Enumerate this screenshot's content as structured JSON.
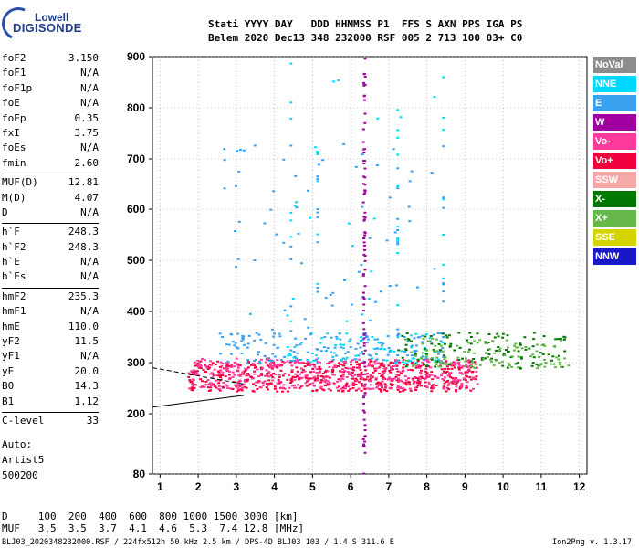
{
  "logo": {
    "top": "Lowell",
    "main": "DIGISONDE"
  },
  "header": {
    "line1": "Stati YYYY DAY   DDD HHMMSS P1  FFS S AXN PPS IGA PS",
    "line2": "Belem 2020 Dec13 348 232000 RSF 005 2 713 100 03+ C0"
  },
  "params": [
    {
      "label": "foF2",
      "value": "3.150"
    },
    {
      "label": "foF1",
      "value": "N/A"
    },
    {
      "label": "foF1p",
      "value": "N/A"
    },
    {
      "label": "foE",
      "value": "N/A"
    },
    {
      "label": "foEp",
      "value": "0.35"
    },
    {
      "label": "fxI",
      "value": "3.75"
    },
    {
      "label": "foEs",
      "value": "N/A"
    },
    {
      "label": "fmin",
      "value": "2.60"
    },
    {
      "label": "MUF(D)",
      "value": "12.81"
    },
    {
      "label": "M(D)",
      "value": "4.07"
    },
    {
      "label": "D",
      "value": "N/A"
    },
    {
      "label": "h`F",
      "value": "248.3"
    },
    {
      "label": "h`F2",
      "value": "248.3"
    },
    {
      "label": "h`E",
      "value": "N/A"
    },
    {
      "label": "h`Es",
      "value": "N/A"
    },
    {
      "label": "hmF2",
      "value": "235.3"
    },
    {
      "label": "hmF1",
      "value": "N/A"
    },
    {
      "label": "hmE",
      "value": "110.0"
    },
    {
      "label": "yF2",
      "value": "11.5"
    },
    {
      "label": "yF1",
      "value": "N/A"
    },
    {
      "label": "yE",
      "value": "20.0"
    },
    {
      "label": "B0",
      "value": "14.3"
    },
    {
      "label": "B1",
      "value": "1.12"
    },
    {
      "label": "C-level",
      "value": "33"
    }
  ],
  "auto": {
    "line1": "Auto:",
    "line2": "Artist5",
    "line3": "500200"
  },
  "muf_table": {
    "d_line": "D     100  200  400  600  800 1000 1500 3000 [km]",
    "muf_line": "MUF   3.5  3.5  3.7  4.1  4.6  5.3  7.4 12.8 [MHz]"
  },
  "footer": {
    "left": "BLJ03_2020348232000.RSF / 224fx512h 50 kHz 2.5 km / DPS-4D BLJ03 103 / 1.4 S 311.6 E",
    "right": "Ion2Png v. 1.3.17"
  },
  "legend": [
    {
      "label": "NoVal",
      "color": "#8c8c8c"
    },
    {
      "label": "NNE",
      "color": "#00d8ff"
    },
    {
      "label": "E",
      "color": "#3aa0f0"
    },
    {
      "label": "W",
      "color": "#a000a0"
    },
    {
      "label": "Vo-",
      "color": "#ff3c9c"
    },
    {
      "label": "Vo+",
      "color": "#f0003c"
    },
    {
      "label": "SSW",
      "color": "#f4a8a8"
    },
    {
      "label": "X-",
      "color": "#007800"
    },
    {
      "label": "X+",
      "color": "#66b84a"
    },
    {
      "label": "SSE",
      "color": "#d4d400"
    },
    {
      "label": "NNW",
      "color": "#1818c8"
    }
  ],
  "chart_data": {
    "type": "scatter",
    "title": "",
    "xlabel": "",
    "ylabel": "",
    "xlim": [
      0.8,
      12.2
    ],
    "ylim": [
      80,
      900
    ],
    "y_scale": "nonlinear (ionogram virtual height)",
    "x_ticks": [
      1,
      2,
      3,
      4,
      5,
      6,
      7,
      8,
      9,
      10,
      11,
      12
    ],
    "y_ticks": [
      80,
      200,
      300,
      400,
      500,
      600,
      700,
      800,
      900
    ],
    "grid": true,
    "series": [
      {
        "name": "Vo+",
        "x_range": [
          1.7,
          9.3
        ],
        "y_range": [
          245,
          305
        ]
      },
      {
        "name": "Vo-",
        "x_range": [
          1.7,
          9.3
        ],
        "y_range": [
          250,
          310
        ]
      },
      {
        "name": "E",
        "x_range": [
          2.5,
          8.4
        ],
        "y_range": [
          300,
          740
        ]
      },
      {
        "name": "NNE",
        "x_range": [
          4.3,
          8.4
        ],
        "y_range": [
          380,
          890
        ]
      },
      {
        "name": "W",
        "x_range": [
          6.3,
          6.35
        ],
        "y_range": [
          80,
          900
        ]
      },
      {
        "name": "X-",
        "x_range": [
          7.2,
          11.6
        ],
        "y_range": [
          290,
          360
        ]
      },
      {
        "name": "X+",
        "x_range": [
          7.4,
          11.7
        ],
        "y_range": [
          290,
          350
        ]
      }
    ],
    "traces": [
      {
        "name": "dashed",
        "points": [
          [
            0.8,
            290
          ],
          [
            3.2,
            258
          ]
        ]
      },
      {
        "name": "solid",
        "points": [
          [
            0.8,
            213
          ],
          [
            3.2,
            236
          ]
        ]
      }
    ]
  }
}
